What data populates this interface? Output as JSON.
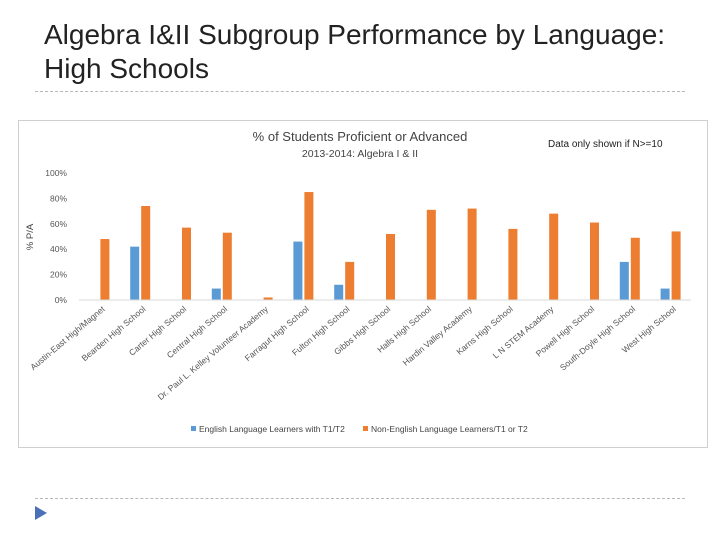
{
  "slide": {
    "title": "Algebra I&II Subgroup Performance by Language: High Schools"
  },
  "note": "Data only shown if N>=10",
  "colors": {
    "ell": "#5b9bd5",
    "non_ell": "#ed7d31",
    "rule": "#b8b8b8"
  },
  "icons": {
    "nav": "flag-arrow-icon"
  },
  "chart_data": {
    "type": "bar",
    "title": "% of Students Proficient or Advanced",
    "subtitle": "2013-2014: Algebra I & II",
    "ylabel": "% P/A",
    "xlabel": "",
    "ylim": [
      0,
      100
    ],
    "yticks": [
      "0%",
      "20%",
      "40%",
      "60%",
      "80%",
      "100%"
    ],
    "grid": false,
    "legend": "bottom",
    "categories": [
      "Austin-East High/Magnet",
      "Bearden High School",
      "Carter High School",
      "Central High School",
      "Dr. Paul L. Kelley Volunteer Academy",
      "Farragut High School",
      "Fulton High School",
      "Gibbs High School",
      "Halls High School",
      "Hardin Valley Academy",
      "Karns High School",
      "L N STEM Academy",
      "Powell High School",
      "South-Doyle High School",
      "West High School"
    ],
    "series": [
      {
        "name": "English Language Learners with T1/T2",
        "color": "#5b9bd5",
        "values": [
          null,
          42,
          null,
          9,
          null,
          46,
          12,
          null,
          null,
          null,
          null,
          null,
          null,
          30,
          9
        ]
      },
      {
        "name": "Non-English Language Learners/T1 or T2",
        "color": "#ed7d31",
        "values": [
          48,
          74,
          57,
          53,
          2,
          85,
          30,
          52,
          71,
          72,
          56,
          68,
          61,
          49,
          54
        ]
      }
    ]
  }
}
